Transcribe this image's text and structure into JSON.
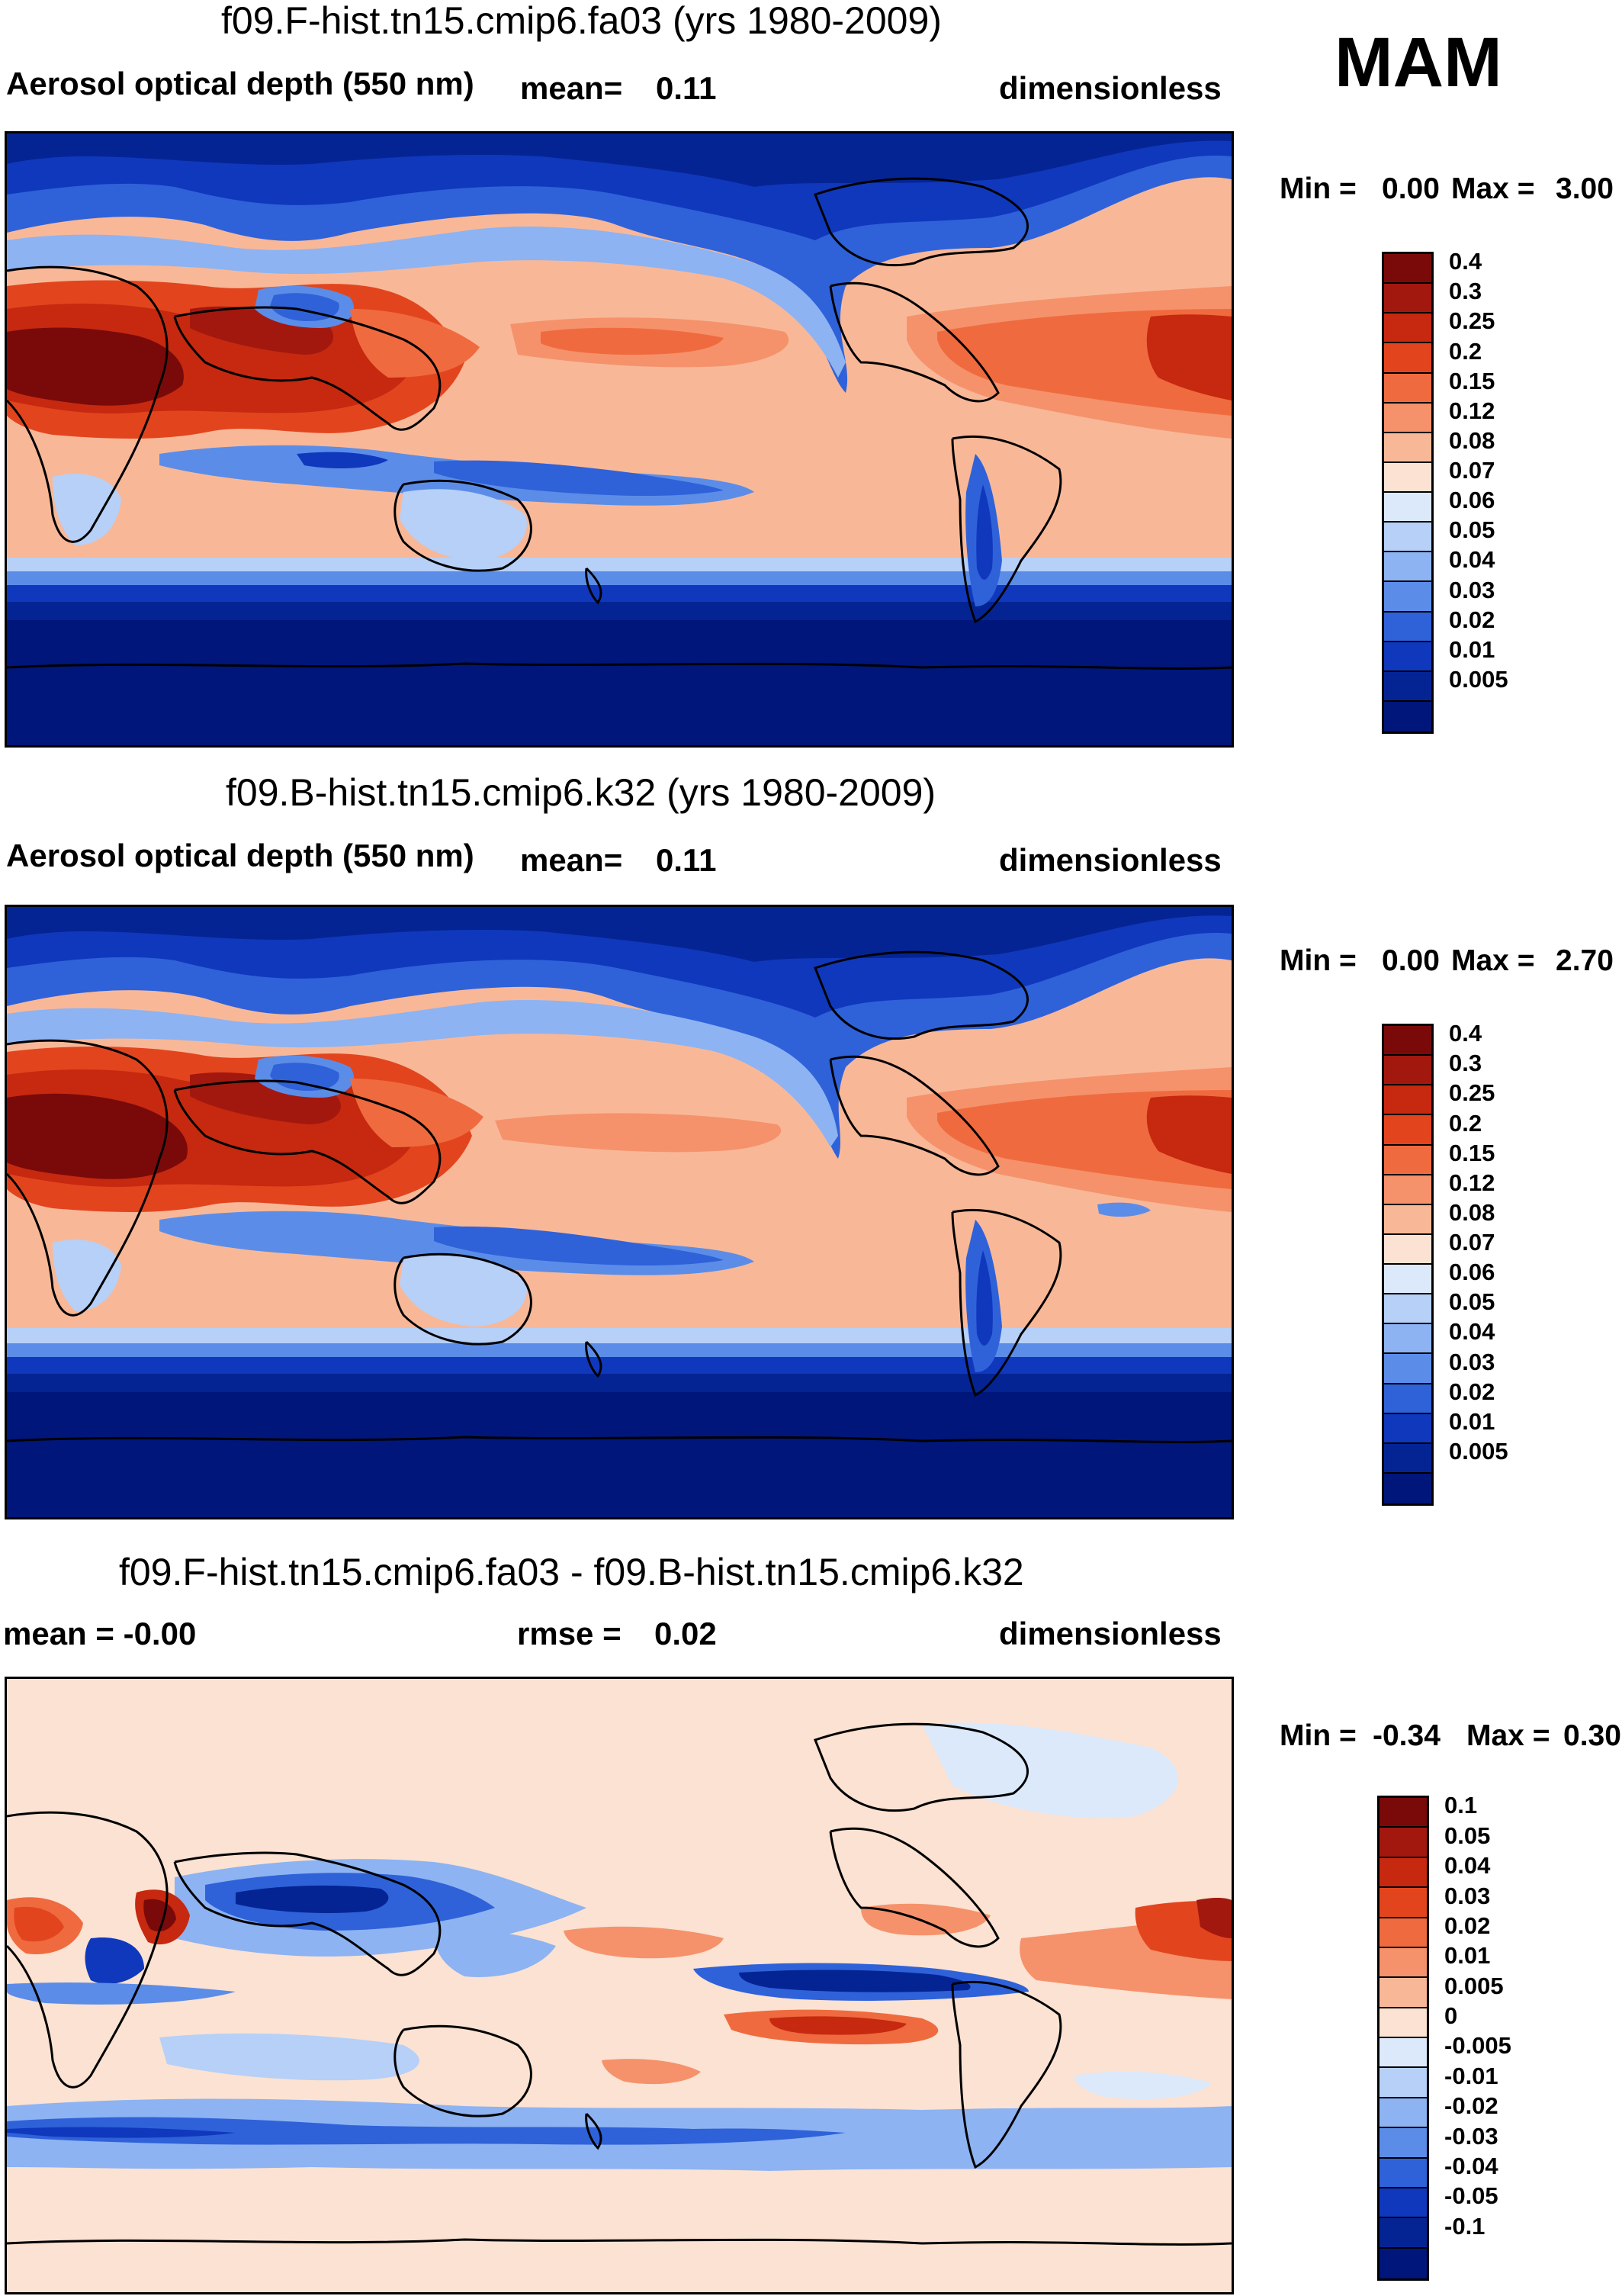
{
  "season": "MAM",
  "panels": [
    {
      "title": "f09.F-hist.tn15.cmip6.fa03 (yrs 1980-2009)",
      "left_label": "Aerosol optical depth (550 nm)",
      "center_label": "mean=",
      "center_value": "0.11",
      "right_label": "dimensionless",
      "min_label": "Min =",
      "min_value": "0.00",
      "max_label": "Max =",
      "max_value": "3.00",
      "colorbar": {
        "levels": [
          "0.4",
          "0.3",
          "0.25",
          "0.2",
          "0.15",
          "0.12",
          "0.08",
          "0.07",
          "0.06",
          "0.05",
          "0.04",
          "0.03",
          "0.02",
          "0.01",
          "0.005"
        ],
        "colors": [
          "#7a0a0a",
          "#a3180e",
          "#c6290f",
          "#e2451e",
          "#ef6b3f",
          "#f5926b",
          "#f8b898",
          "#fbe2d2",
          "#dce9fb",
          "#b6d0f7",
          "#8db3f2",
          "#5b8de8",
          "#2f62d9",
          "#1038bd",
          "#052494",
          "#00167a"
        ]
      }
    },
    {
      "title": "f09.B-hist.tn15.cmip6.k32 (yrs 1980-2009)",
      "left_label": "Aerosol optical depth (550 nm)",
      "center_label": "mean=",
      "center_value": "0.11",
      "right_label": "dimensionless",
      "min_label": "Min =",
      "min_value": "0.00",
      "max_label": "Max =",
      "max_value": "2.70",
      "colorbar": {
        "levels": [
          "0.4",
          "0.3",
          "0.25",
          "0.2",
          "0.15",
          "0.12",
          "0.08",
          "0.07",
          "0.06",
          "0.05",
          "0.04",
          "0.03",
          "0.02",
          "0.01",
          "0.005"
        ],
        "colors": [
          "#7a0a0a",
          "#a3180e",
          "#c6290f",
          "#e2451e",
          "#ef6b3f",
          "#f5926b",
          "#f8b898",
          "#fbe2d2",
          "#dce9fb",
          "#b6d0f7",
          "#8db3f2",
          "#5b8de8",
          "#2f62d9",
          "#1038bd",
          "#052494",
          "#00167a"
        ]
      }
    },
    {
      "title": "f09.F-hist.tn15.cmip6.fa03 - f09.B-hist.tn15.cmip6.k32",
      "left_label": "mean =  -0.00",
      "center_label": "rmse =",
      "center_value": "0.02",
      "right_label": "dimensionless",
      "min_label": "Min =",
      "min_value": "-0.34",
      "max_label": "Max =",
      "max_value": "0.30",
      "colorbar": {
        "levels": [
          "0.1",
          "0.05",
          "0.04",
          "0.03",
          "0.02",
          "0.01",
          "0.005",
          "0",
          "-0.005",
          "-0.01",
          "-0.02",
          "-0.03",
          "-0.04",
          "-0.05",
          "-0.1"
        ],
        "colors": [
          "#7a0a0a",
          "#a3180e",
          "#c6290f",
          "#e2451e",
          "#ef6b3f",
          "#f5926b",
          "#f8b898",
          "#fbe2d2",
          "#dce9fb",
          "#b6d0f7",
          "#8db3f2",
          "#5b8de8",
          "#2f62d9",
          "#1038bd",
          "#052494",
          "#00167a"
        ]
      }
    }
  ]
}
